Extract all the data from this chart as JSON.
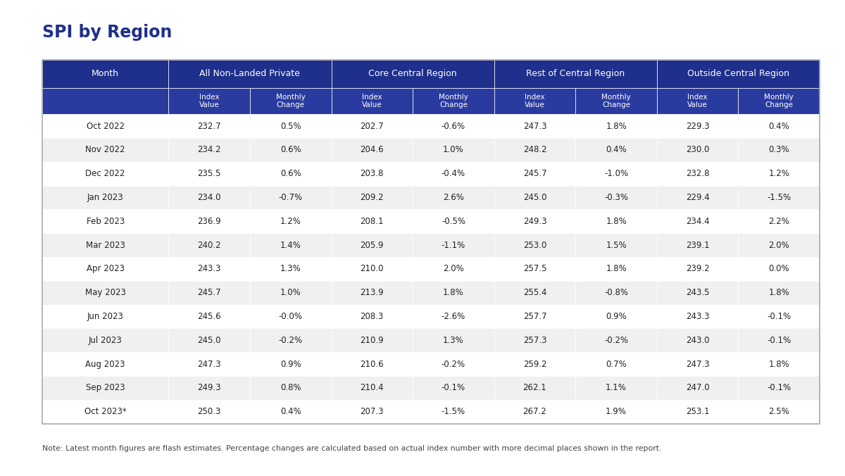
{
  "title": "SPI by Region",
  "note": "Note: Latest month figures are flash estimates. Percentage changes are calculated based on actual index number with more decimal places shown in the report.",
  "header_bg": "#1e2f8c",
  "subheader_bg": "#2a3ba0",
  "row_bg_odd": "#ffffff",
  "row_bg_even": "#f0f0f0",
  "header_text_color": "#ffffff",
  "cell_text_color": "#222222",
  "title_color": "#1e2f8c",
  "months": [
    "Oct 2022",
    "Nov 2022",
    "Dec 2022",
    "Jan 2023",
    "Feb 2023",
    "Mar 2023",
    "Apr 2023",
    "May 2023",
    "Jun 2023",
    "Jul 2023",
    "Aug 2023",
    "Sep 2023",
    "Oct 2023*"
  ],
  "data": [
    [
      232.7,
      "0.5%",
      202.7,
      "-0.6%",
      247.3,
      "1.8%",
      229.3,
      "0.4%"
    ],
    [
      234.2,
      "0.6%",
      204.6,
      "1.0%",
      248.2,
      "0.4%",
      230.0,
      "0.3%"
    ],
    [
      235.5,
      "0.6%",
      203.8,
      "-0.4%",
      245.7,
      "-1.0%",
      232.8,
      "1.2%"
    ],
    [
      234.0,
      "-0.7%",
      209.2,
      "2.6%",
      245.0,
      "-0.3%",
      229.4,
      "-1.5%"
    ],
    [
      236.9,
      "1.2%",
      208.1,
      "-0.5%",
      249.3,
      "1.8%",
      234.4,
      "2.2%"
    ],
    [
      240.2,
      "1.4%",
      205.9,
      "-1.1%",
      253.0,
      "1.5%",
      239.1,
      "2.0%"
    ],
    [
      243.3,
      "1.3%",
      210.0,
      "2.0%",
      257.5,
      "1.8%",
      239.2,
      "0.0%"
    ],
    [
      245.7,
      "1.0%",
      213.9,
      "1.8%",
      255.4,
      "-0.8%",
      243.5,
      "1.8%"
    ],
    [
      245.6,
      "-0.0%",
      208.3,
      "-2.6%",
      257.7,
      "0.9%",
      243.3,
      "-0.1%"
    ],
    [
      245.0,
      "-0.2%",
      210.9,
      "1.3%",
      257.3,
      "-0.2%",
      243.0,
      "-0.1%"
    ],
    [
      247.3,
      "0.9%",
      210.6,
      "-0.2%",
      259.2,
      "0.7%",
      247.3,
      "1.8%"
    ],
    [
      249.3,
      "0.8%",
      210.4,
      "-0.1%",
      262.1,
      "1.1%",
      247.0,
      "-0.1%"
    ],
    [
      250.3,
      "0.4%",
      207.3,
      "-1.5%",
      267.2,
      "1.9%",
      253.1,
      "2.5%"
    ]
  ]
}
